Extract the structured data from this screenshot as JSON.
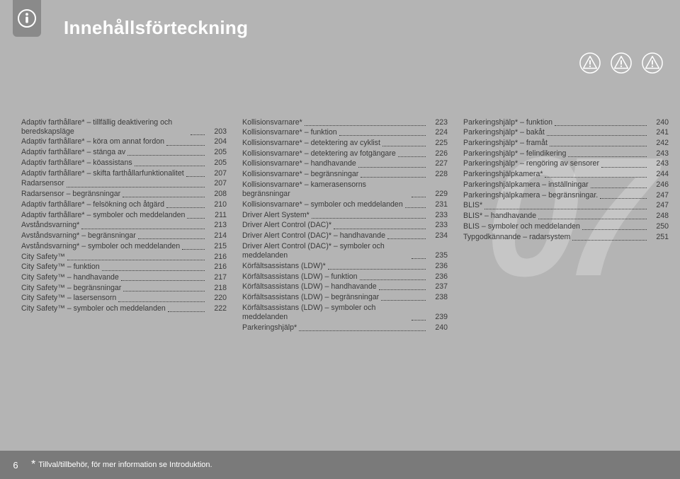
{
  "header": {
    "title": "Innehållsförteckning"
  },
  "watermark": "07",
  "footer": {
    "page": "6",
    "note_prefix": "*",
    "note_text": " Tillval/tillbehör, för mer information se Introduktion."
  },
  "columns": [
    [
      {
        "label": "Adaptiv farthållare* – tillfällig deaktivering och beredskapsläge",
        "page": "203"
      },
      {
        "label": "Adaptiv farthållare* – köra om annat fordon",
        "page": "204"
      },
      {
        "label": "Adaptiv farthållare* – stänga av",
        "page": "205"
      },
      {
        "label": "Adaptiv farthållare* – köassistans",
        "page": "205"
      },
      {
        "label": "Adaptiv farthållare* – skifta farthållarfunktionalitet",
        "page": "207"
      },
      {
        "label": "Radarsensor",
        "page": "207"
      },
      {
        "label": "Radarsensor – begränsningar",
        "page": "208"
      },
      {
        "label": "Adaptiv farthållare* – felsökning och åtgärd",
        "page": "210"
      },
      {
        "label": "Adaptiv farthållare* – symboler och meddelanden",
        "page": "211"
      },
      {
        "label": "Avståndsvarning*",
        "page": "213"
      },
      {
        "label": "Avståndsvarning* – begränsningar",
        "page": "214"
      },
      {
        "label": "Avståndsvarning* – symboler och meddelanden",
        "page": "215"
      },
      {
        "label": "City Safety™",
        "page": "216"
      },
      {
        "label": "City Safety™ – funktion",
        "page": "216"
      },
      {
        "label": "City Safety™ – handhavande",
        "page": "217"
      },
      {
        "label": "City Safety™ – begränsningar",
        "page": "218"
      },
      {
        "label": "City Safety™ – lasersensorn",
        "page": "220"
      },
      {
        "label": "City Safety™ – symboler och meddelanden",
        "page": "222"
      }
    ],
    [
      {
        "label": "Kollisionsvarnare*",
        "page": "223"
      },
      {
        "label": "Kollisionsvarnare* – funktion",
        "page": "224"
      },
      {
        "label": "Kollisionsvarnare* – detektering av cyklist",
        "page": "225"
      },
      {
        "label": "Kollisionsvarnare* – detektering av fotgängare",
        "page": "226"
      },
      {
        "label": "Kollisionsvarnare* – handhavande",
        "page": "227"
      },
      {
        "label": "Kollisionsvarnare* – begränsningar",
        "page": "228"
      },
      {
        "label": "Kollisionsvarnare* – kamerasensorns begränsningar",
        "page": "229"
      },
      {
        "label": "Kollisionsvarnare* – symboler och meddelanden",
        "page": "231"
      },
      {
        "label": "Driver Alert System*",
        "page": "233"
      },
      {
        "label": "Driver Alert Control (DAC)*",
        "page": "233"
      },
      {
        "label": "Driver Alert Control (DAC)* – handhavande",
        "page": "234"
      },
      {
        "label": "Driver Alert Control (DAC)* – symboler och meddelanden",
        "page": "235"
      },
      {
        "label": "Körfältsassistans (LDW)*",
        "page": "236"
      },
      {
        "label": "Körfältsassistans (LDW) – funktion",
        "page": "236"
      },
      {
        "label": "Körfältsassistans (LDW) – handhavande",
        "page": "237"
      },
      {
        "label": "Körfältsassistans (LDW) – begränsningar",
        "page": "238"
      },
      {
        "label": "Körfältsassistans (LDW) – symboler och meddelanden",
        "page": "239"
      },
      {
        "label": "Parkeringshjälp*",
        "page": "240"
      }
    ],
    [
      {
        "label": "Parkeringshjälp* – funktion",
        "page": "240"
      },
      {
        "label": "Parkeringshjälp* – bakåt",
        "page": "241"
      },
      {
        "label": "Parkeringshjälp* – framåt",
        "page": "242"
      },
      {
        "label": "Parkeringshjälp* – felindikering",
        "page": "243"
      },
      {
        "label": "Parkeringshjälp* – rengöring av sensorer",
        "page": "243"
      },
      {
        "label": "Parkeringshjälpkamera*",
        "page": "244"
      },
      {
        "label": "Parkeringshjälpkamera – inställningar",
        "page": "246"
      },
      {
        "label": "Parkeringshjälpkamera – begränsningar.",
        "page": "247"
      },
      {
        "label": "BLIS*",
        "page": "247"
      },
      {
        "label": "BLIS* – handhavande",
        "page": "248"
      },
      {
        "label": "BLIS – symboler och meddelanden",
        "page": "250"
      },
      {
        "label": "Typgodkännande – radarsystem",
        "page": "251"
      }
    ]
  ]
}
